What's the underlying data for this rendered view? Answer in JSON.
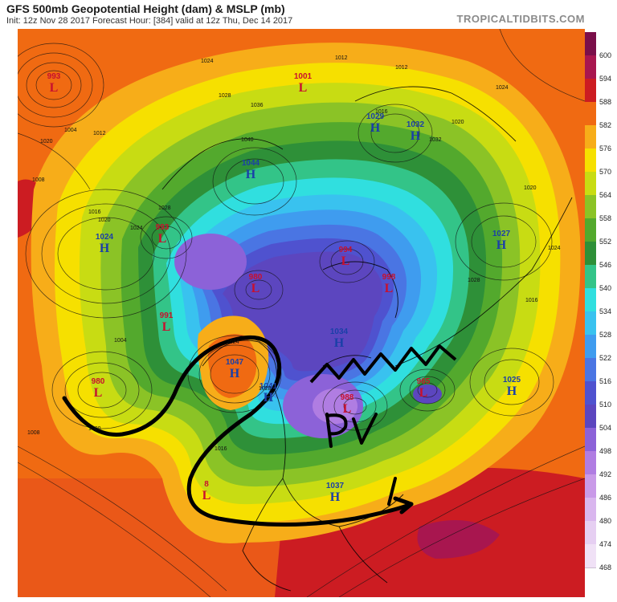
{
  "header": {
    "title": "GFS 500mb Geopotential Height (dam) & MSLP (mb)",
    "subtitle": "Init: 12z Nov 28 2017   Forecast Hour: [384]   valid at 12z Thu, Dec 14 2017",
    "brand": "TROPICALTIDBITS.COM"
  },
  "colorbar": {
    "unit_levels": [
      "600",
      "594",
      "588",
      "582",
      "576",
      "570",
      "564",
      "558",
      "552",
      "546",
      "540",
      "534",
      "528",
      "522",
      "516",
      "510",
      "504",
      "498",
      "492",
      "486",
      "480",
      "474",
      "468"
    ],
    "colors": [
      "#7a0f4a",
      "#a8164f",
      "#cc1c22",
      "#f06a12",
      "#f7ad19",
      "#f6e000",
      "#c8dc13",
      "#8bc326",
      "#53a92d",
      "#2e9038",
      "#33c488",
      "#30dfdf",
      "#39c2ef",
      "#3f9cef",
      "#4a75e3",
      "#4f52cf",
      "#5c46bf",
      "#8c62d8",
      "#b07de2",
      "#c99ae8",
      "#d9b6ee",
      "#e6cff2",
      "#f0e1f6"
    ]
  },
  "pressure_systems": [
    {
      "type": "L",
      "value": "993"
    },
    {
      "type": "L",
      "value": "1001"
    },
    {
      "type": "H",
      "value": "1029"
    },
    {
      "type": "H",
      "value": "1032"
    },
    {
      "type": "H",
      "value": "1044"
    },
    {
      "type": "H",
      "value": "1024"
    },
    {
      "type": "L",
      "value": "993"
    },
    {
      "type": "L",
      "value": "994"
    },
    {
      "type": "L",
      "value": "980"
    },
    {
      "type": "L",
      "value": "998"
    },
    {
      "type": "L",
      "value": "991"
    },
    {
      "type": "H",
      "value": "1027"
    },
    {
      "type": "L",
      "value": "980"
    },
    {
      "type": "H",
      "value": "1047"
    },
    {
      "type": "H",
      "value": "1041"
    },
    {
      "type": "H",
      "value": "1034"
    },
    {
      "type": "L",
      "value": "965"
    },
    {
      "type": "L",
      "value": "988"
    },
    {
      "type": "H",
      "value": "1025"
    },
    {
      "type": "L",
      "value": "8"
    },
    {
      "type": "H",
      "value": "1037"
    }
  ],
  "contour_labels": [
    "1024",
    "1028",
    "1020",
    "1012",
    "1004",
    "1008",
    "1016",
    "1020",
    "1024",
    "1028",
    "1036",
    "1040",
    "1012",
    "1016",
    "1020",
    "1000",
    "1008",
    "1024",
    "1028",
    "1016",
    "1032",
    "1024",
    "1012",
    "1020",
    "1004",
    "1028",
    "1024",
    "1016"
  ],
  "annotation": {
    "text": "PV"
  }
}
